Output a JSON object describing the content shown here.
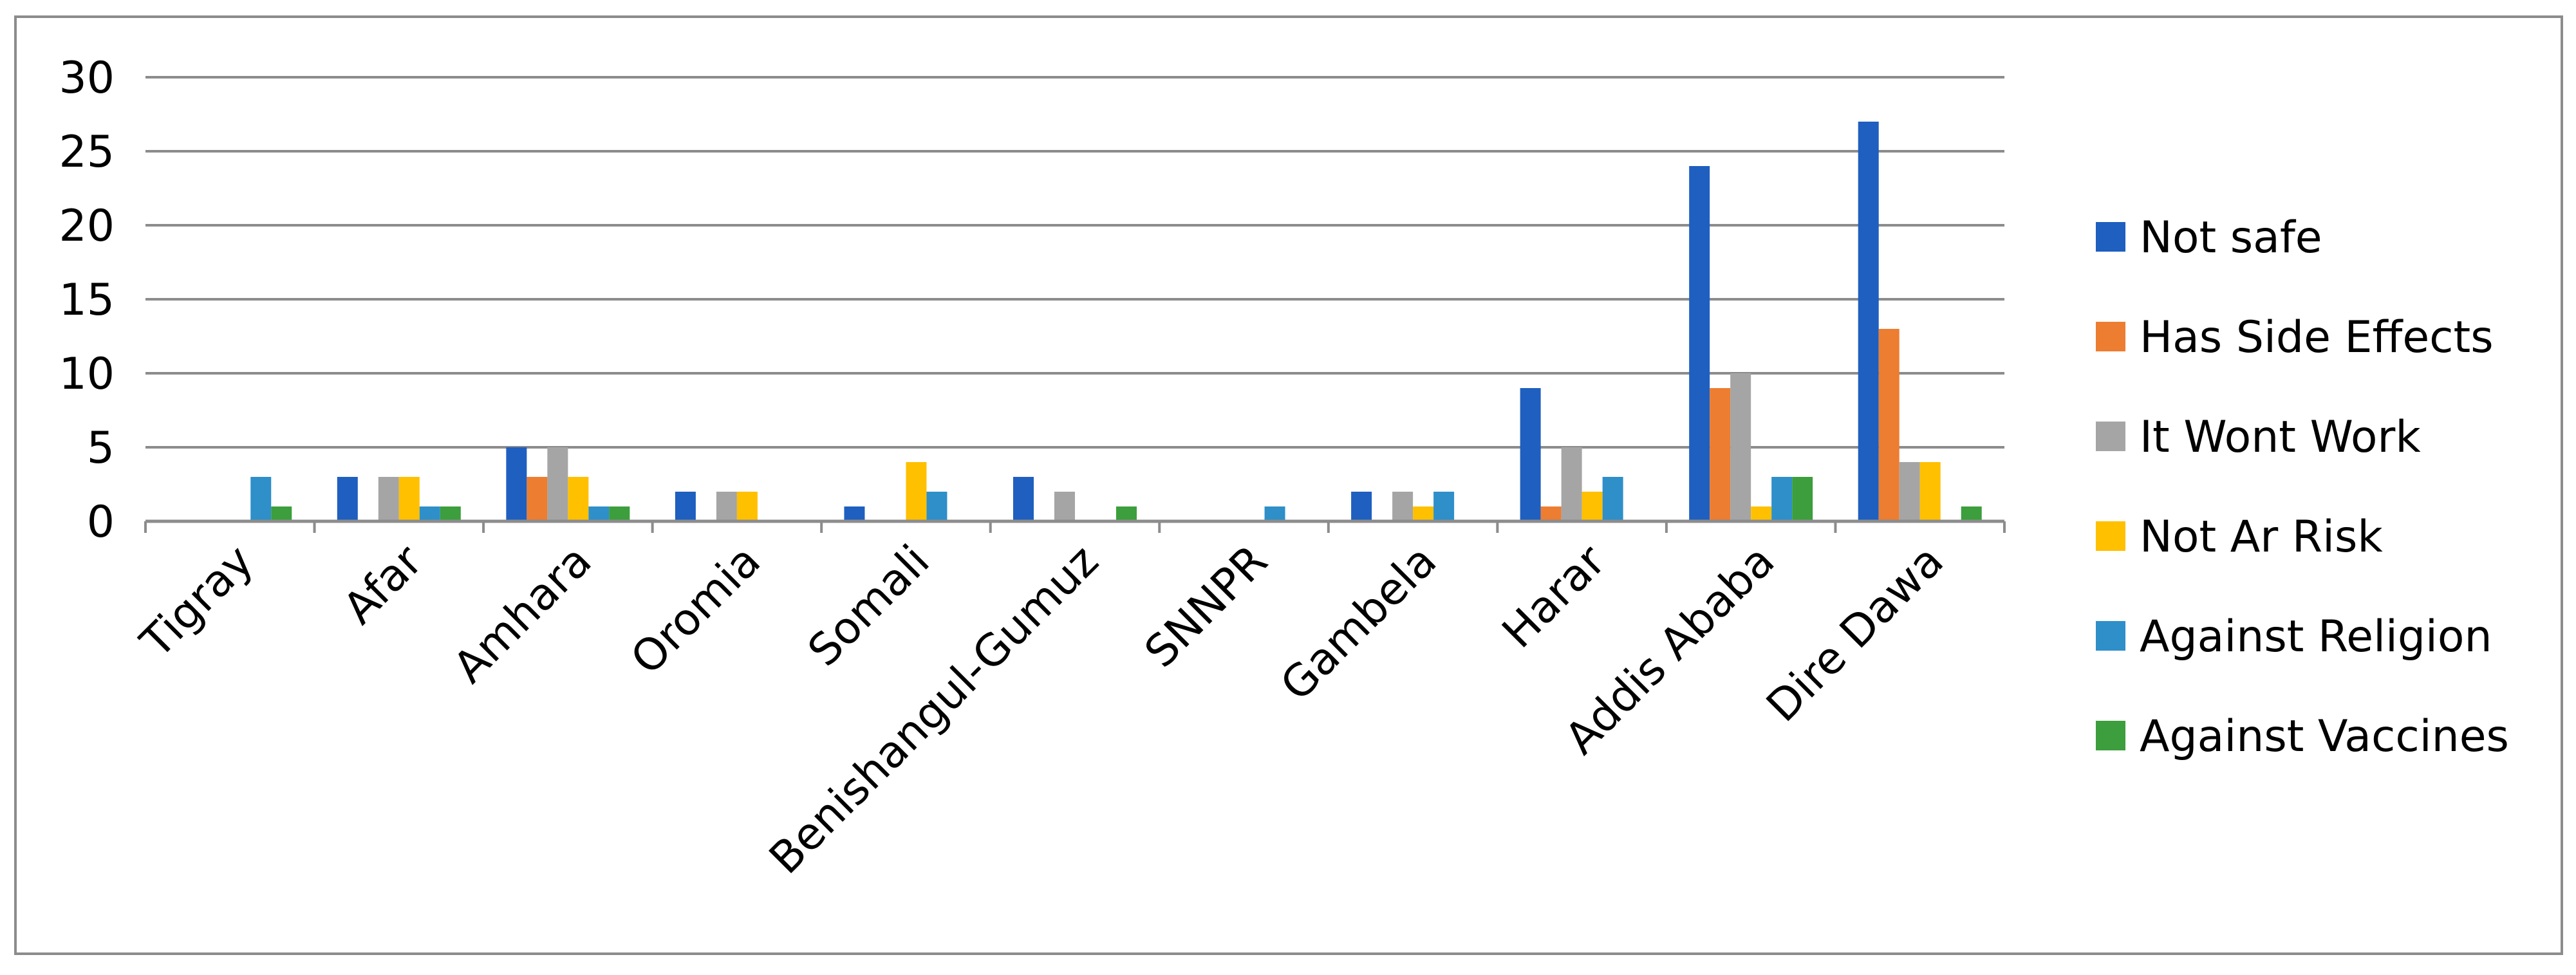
{
  "chart_data": {
    "type": "bar",
    "categories": [
      "Tigray",
      "Afar",
      "Amhara",
      "Oromia",
      "Somali",
      "Benishangul-Gumuz",
      "SNNPR",
      "Gambela",
      "Harar",
      "Addis Ababa",
      "Dire Dawa"
    ],
    "series": [
      {
        "name": "Not safe",
        "color": "#1F5FBF",
        "values": [
          0,
          3,
          5,
          2,
          1,
          3,
          0,
          2,
          9,
          24,
          27
        ]
      },
      {
        "name": "Has Side Effects",
        "color": "#ED7D31",
        "values": [
          0,
          0,
          3,
          0,
          0,
          0,
          0,
          0,
          1,
          9,
          13
        ]
      },
      {
        "name": "It Wont Work",
        "color": "#A5A5A5",
        "values": [
          0,
          3,
          5,
          2,
          0,
          2,
          0,
          2,
          5,
          10,
          4
        ]
      },
      {
        "name": "Not Ar Risk",
        "color": "#FFC000",
        "values": [
          0,
          3,
          3,
          2,
          4,
          0,
          0,
          1,
          2,
          1,
          4
        ]
      },
      {
        "name": "Against Religion",
        "color": "#2E8FC9",
        "values": [
          3,
          1,
          1,
          0,
          2,
          0,
          1,
          2,
          3,
          3,
          0
        ]
      },
      {
        "name": "Against Vaccines",
        "color": "#3C9E3C",
        "values": [
          1,
          1,
          1,
          0,
          0,
          1,
          0,
          0,
          0,
          3,
          1
        ]
      }
    ],
    "yticks": [
      "0",
      "5",
      "10",
      "15",
      "20",
      "25",
      "30"
    ],
    "ylim": [
      0,
      30
    ],
    "ytick_step": 5,
    "grid": true,
    "legend": "right",
    "title": "",
    "xlabel": "",
    "ylabel": ""
  }
}
